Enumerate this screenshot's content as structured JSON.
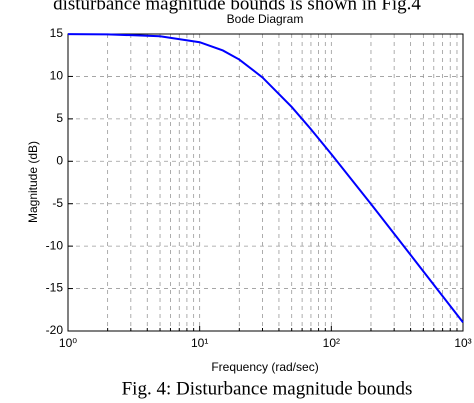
{
  "page": {
    "text_above": "disturbance magnitude bounds is shown in Fig.4",
    "caption": "Fig. 4:  Disturbance magnitude bounds"
  },
  "chart_data": {
    "type": "line",
    "title": "Bode Diagram",
    "x_label": "Frequency  (rad/sec)",
    "y_label": "Magnitude (dB)",
    "x": [
      1,
      2,
      5,
      10,
      15,
      20,
      30,
      50,
      70,
      100,
      200,
      300,
      500,
      700,
      1000
    ],
    "values": [
      14.99,
      14.96,
      14.74,
      14.03,
      13.06,
      11.99,
      9.88,
      6.4,
      3.78,
      0.85,
      -5.04,
      -8.54,
      -12.97,
      -15.89,
      -18.98
    ],
    "color": "#0000ff",
    "x_log": true,
    "grid": true,
    "xlim": [
      1,
      1000
    ],
    "xticks": [
      {
        "value": 1,
        "label": "10⁰"
      },
      {
        "value": 10,
        "label": "10¹"
      },
      {
        "value": 100,
        "label": "10²"
      },
      {
        "value": 1000,
        "label": "10³"
      }
    ],
    "x_minor_grid": [
      2,
      3,
      4,
      5,
      6,
      7,
      8,
      9,
      20,
      30,
      40,
      50,
      60,
      70,
      80,
      90,
      200,
      300,
      400,
      500,
      600,
      700,
      800,
      900
    ],
    "ylim": [
      -20,
      15
    ],
    "yticks": [
      -20,
      -15,
      -10,
      -5,
      0,
      5,
      10,
      15
    ]
  }
}
